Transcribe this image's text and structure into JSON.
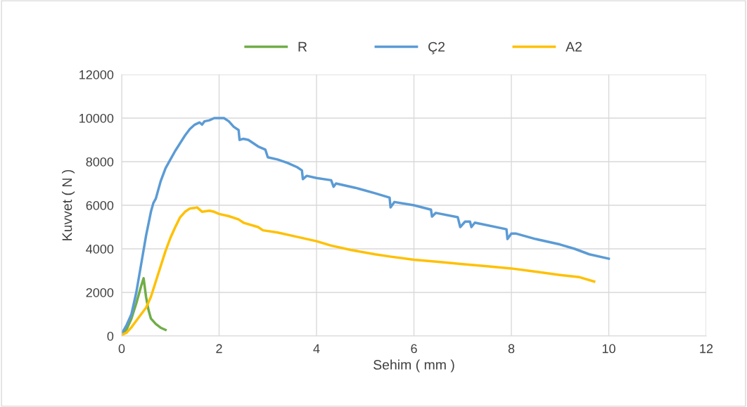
{
  "chart_data": {
    "type": "line",
    "xlabel": "Sehim ( mm )",
    "ylabel": "Kuvvet ( N )",
    "xlim": [
      0,
      12
    ],
    "xticks": [
      0,
      2,
      4,
      6,
      8,
      10,
      12
    ],
    "ylim": [
      0,
      12000
    ],
    "yticks": [
      0,
      2000,
      4000,
      6000,
      8000,
      10000,
      12000
    ],
    "grid": true,
    "legend": "top",
    "marker": "none",
    "line_style": "solid",
    "series": [
      {
        "name": "R",
        "color": "#70ad47",
        "x": [
          0,
          0.1,
          0.2,
          0.3,
          0.4,
          0.45,
          0.5,
          0.55,
          0.6,
          0.7,
          0.8,
          0.9
        ],
        "values": [
          50,
          300,
          800,
          1500,
          2300,
          2650,
          1800,
          1200,
          800,
          550,
          380,
          280
        ]
      },
      {
        "name": "Ç2",
        "color": "#5b9bd5",
        "x": [
          0,
          0.1,
          0.2,
          0.3,
          0.4,
          0.5,
          0.6,
          0.65,
          0.7,
          0.8,
          0.9,
          1.0,
          1.1,
          1.2,
          1.3,
          1.4,
          1.5,
          1.6,
          1.65,
          1.7,
          1.8,
          1.9,
          2.0,
          2.1,
          2.2,
          2.3,
          2.4,
          2.42,
          2.5,
          2.6,
          2.8,
          2.95,
          3.0,
          3.2,
          3.4,
          3.6,
          3.7,
          3.72,
          3.8,
          4.0,
          4.3,
          4.35,
          4.4,
          4.8,
          5.2,
          5.5,
          5.52,
          5.6,
          6.0,
          6.35,
          6.37,
          6.45,
          6.9,
          6.95,
          7.05,
          7.15,
          7.18,
          7.25,
          7.9,
          7.92,
          8.0,
          8.1,
          8.5,
          9.0,
          9.3,
          9.6,
          10.0
        ],
        "values": [
          100,
          500,
          1000,
          2000,
          3300,
          4600,
          5700,
          6100,
          6300,
          7100,
          7700,
          8100,
          8500,
          8850,
          9200,
          9500,
          9700,
          9800,
          9700,
          9850,
          9900,
          10000,
          10000,
          10000,
          9850,
          9600,
          9450,
          9000,
          9050,
          9000,
          8700,
          8550,
          8200,
          8100,
          7950,
          7750,
          7600,
          7200,
          7350,
          7250,
          7150,
          6850,
          7000,
          6800,
          6550,
          6350,
          5900,
          6150,
          6000,
          5800,
          5480,
          5650,
          5450,
          5000,
          5250,
          5250,
          5000,
          5200,
          4900,
          4450,
          4700,
          4700,
          4450,
          4200,
          4000,
          3750,
          3550
        ]
      },
      {
        "name": "A2",
        "color": "#ffc000",
        "x": [
          0,
          0.1,
          0.2,
          0.3,
          0.4,
          0.5,
          0.6,
          0.7,
          0.8,
          0.9,
          1.0,
          1.1,
          1.2,
          1.3,
          1.4,
          1.5,
          1.55,
          1.65,
          1.8,
          1.9,
          2.0,
          2.2,
          2.4,
          2.5,
          2.8,
          2.9,
          3.2,
          3.5,
          4.0,
          4.3,
          4.7,
          5.2,
          5.5,
          6.0,
          6.5,
          7.0,
          7.5,
          8.0,
          8.5,
          9.0,
          9.4,
          9.7
        ],
        "values": [
          50,
          150,
          400,
          700,
          1000,
          1300,
          1800,
          2500,
          3200,
          3900,
          4500,
          5000,
          5450,
          5700,
          5850,
          5880,
          5900,
          5700,
          5750,
          5700,
          5600,
          5500,
          5350,
          5200,
          5000,
          4850,
          4750,
          4600,
          4350,
          4150,
          3950,
          3750,
          3650,
          3500,
          3400,
          3300,
          3200,
          3100,
          2950,
          2800,
          2700,
          2500
        ]
      }
    ]
  }
}
